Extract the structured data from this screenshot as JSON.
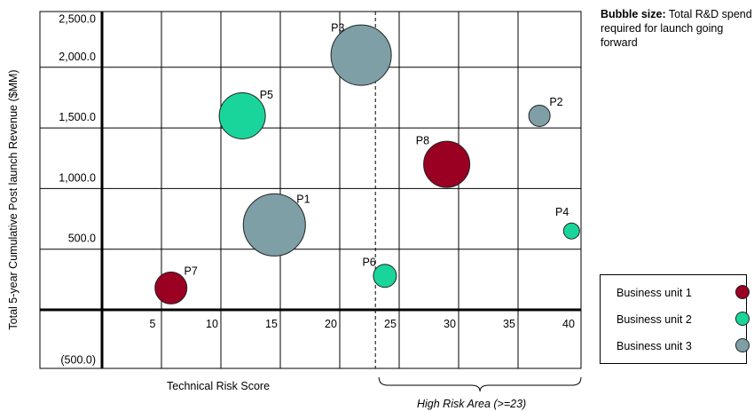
{
  "chart_data": {
    "type": "scatter",
    "subtype": "bubble",
    "xlabel": "Technical Risk Score",
    "ylabel": "Total 5-year Cumulative Post launch Revenue ($MM)",
    "x_ticks": [
      "5",
      "10",
      "15",
      "20",
      "25",
      "30",
      "35",
      "40"
    ],
    "y_ticks": [
      "2,500.0",
      "2,000.0",
      "1,500.0",
      "1,000.0",
      "500.0",
      "(500.0)"
    ],
    "xlim": [
      0,
      40
    ],
    "ylim": [
      -500,
      2500
    ],
    "grid": true,
    "legend_position": "bottom-right",
    "bubble_size_note_title": "Bubble size:",
    "bubble_size_note_text": "Total R&D spend required for launch going forward",
    "threshold_x": 23,
    "threshold_label": "High Risk Area (>=23)",
    "series": [
      {
        "name": "Business unit 1",
        "color": "#990022"
      },
      {
        "name": "Business unit 2",
        "color": "#19D59B"
      },
      {
        "name": "Business unit 3",
        "color": "#7F9FA7"
      }
    ],
    "points": [
      {
        "label": "P1",
        "x": 14.5,
        "y": 700,
        "size": 35,
        "series": 2
      },
      {
        "label": "P2",
        "x": 36.8,
        "y": 1600,
        "size": 12,
        "series": 2
      },
      {
        "label": "P3",
        "x": 21.8,
        "y": 2100,
        "size": 34,
        "series": 2
      },
      {
        "label": "P4",
        "x": 39.5,
        "y": 650,
        "size": 9,
        "series": 1
      },
      {
        "label": "P5",
        "x": 11.8,
        "y": 1600,
        "size": 26,
        "series": 1
      },
      {
        "label": "P6",
        "x": 23.8,
        "y": 280,
        "size": 13,
        "series": 1
      },
      {
        "label": "P7",
        "x": 5.8,
        "y": 180,
        "size": 18,
        "series": 0
      },
      {
        "label": "P8",
        "x": 29.0,
        "y": 1200,
        "size": 26,
        "series": 0
      }
    ]
  }
}
